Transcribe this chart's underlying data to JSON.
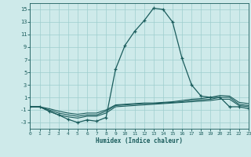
{
  "xlabel": "Humidex (Indice chaleur)",
  "bg_color": "#ceeaea",
  "grid_color": "#9ecece",
  "line_color": "#1a5c5c",
  "xlim": [
    0,
    23
  ],
  "ylim": [
    -4,
    16
  ],
  "yticks": [
    -3,
    -1,
    1,
    3,
    5,
    7,
    9,
    11,
    13,
    15
  ],
  "xticks": [
    0,
    1,
    2,
    3,
    4,
    5,
    6,
    7,
    8,
    9,
    10,
    11,
    12,
    13,
    14,
    15,
    16,
    17,
    18,
    19,
    20,
    21,
    22,
    23
  ],
  "line1_x": [
    0,
    1,
    2,
    3,
    4,
    5,
    6,
    7,
    8,
    9,
    10,
    11,
    12,
    13,
    14,
    15,
    16,
    17,
    18,
    19,
    20,
    21,
    22,
    23
  ],
  "line1_y": [
    -0.5,
    -0.5,
    -1.2,
    -1.8,
    -2.5,
    -3.0,
    -2.6,
    -2.8,
    -2.2,
    5.5,
    9.3,
    11.5,
    13.2,
    15.2,
    15.0,
    13.0,
    7.2,
    3.0,
    1.2,
    1.0,
    1.0,
    -0.5,
    -0.5,
    -0.8
  ],
  "line2_x": [
    0,
    1,
    2,
    3,
    4,
    5,
    6,
    7,
    8,
    9,
    10,
    11,
    12,
    13,
    14,
    15,
    16,
    17,
    18,
    19,
    20,
    21,
    22,
    23
  ],
  "line2_y": [
    -0.5,
    -0.5,
    -1.2,
    -1.8,
    -2.1,
    -2.3,
    -2.0,
    -2.0,
    -1.5,
    -0.5,
    -0.4,
    -0.3,
    -0.2,
    -0.1,
    0.0,
    0.1,
    0.2,
    0.3,
    0.4,
    0.5,
    0.7,
    0.7,
    -0.3,
    -0.5
  ],
  "line3_x": [
    0,
    1,
    2,
    3,
    4,
    5,
    6,
    7,
    8,
    9,
    10,
    11,
    12,
    13,
    14,
    15,
    16,
    17,
    18,
    19,
    20,
    21,
    22,
    23
  ],
  "line3_y": [
    -0.5,
    -0.5,
    -1.0,
    -1.5,
    -1.8,
    -2.0,
    -1.8,
    -1.8,
    -1.2,
    -0.3,
    -0.2,
    -0.1,
    0.0,
    0.0,
    0.1,
    0.2,
    0.3,
    0.5,
    0.6,
    0.7,
    1.0,
    1.0,
    -0.1,
    -0.3
  ],
  "line4_x": [
    0,
    1,
    2,
    3,
    4,
    5,
    6,
    7,
    8,
    9,
    10,
    11,
    12,
    13,
    14,
    15,
    16,
    17,
    18,
    19,
    20,
    21,
    22,
    23
  ],
  "line4_y": [
    -0.5,
    -0.5,
    -0.8,
    -1.2,
    -1.5,
    -1.7,
    -1.5,
    -1.5,
    -1.0,
    -0.2,
    -0.1,
    0.0,
    0.1,
    0.1,
    0.2,
    0.3,
    0.5,
    0.7,
    0.8,
    1.0,
    1.3,
    1.2,
    0.2,
    0.0
  ]
}
